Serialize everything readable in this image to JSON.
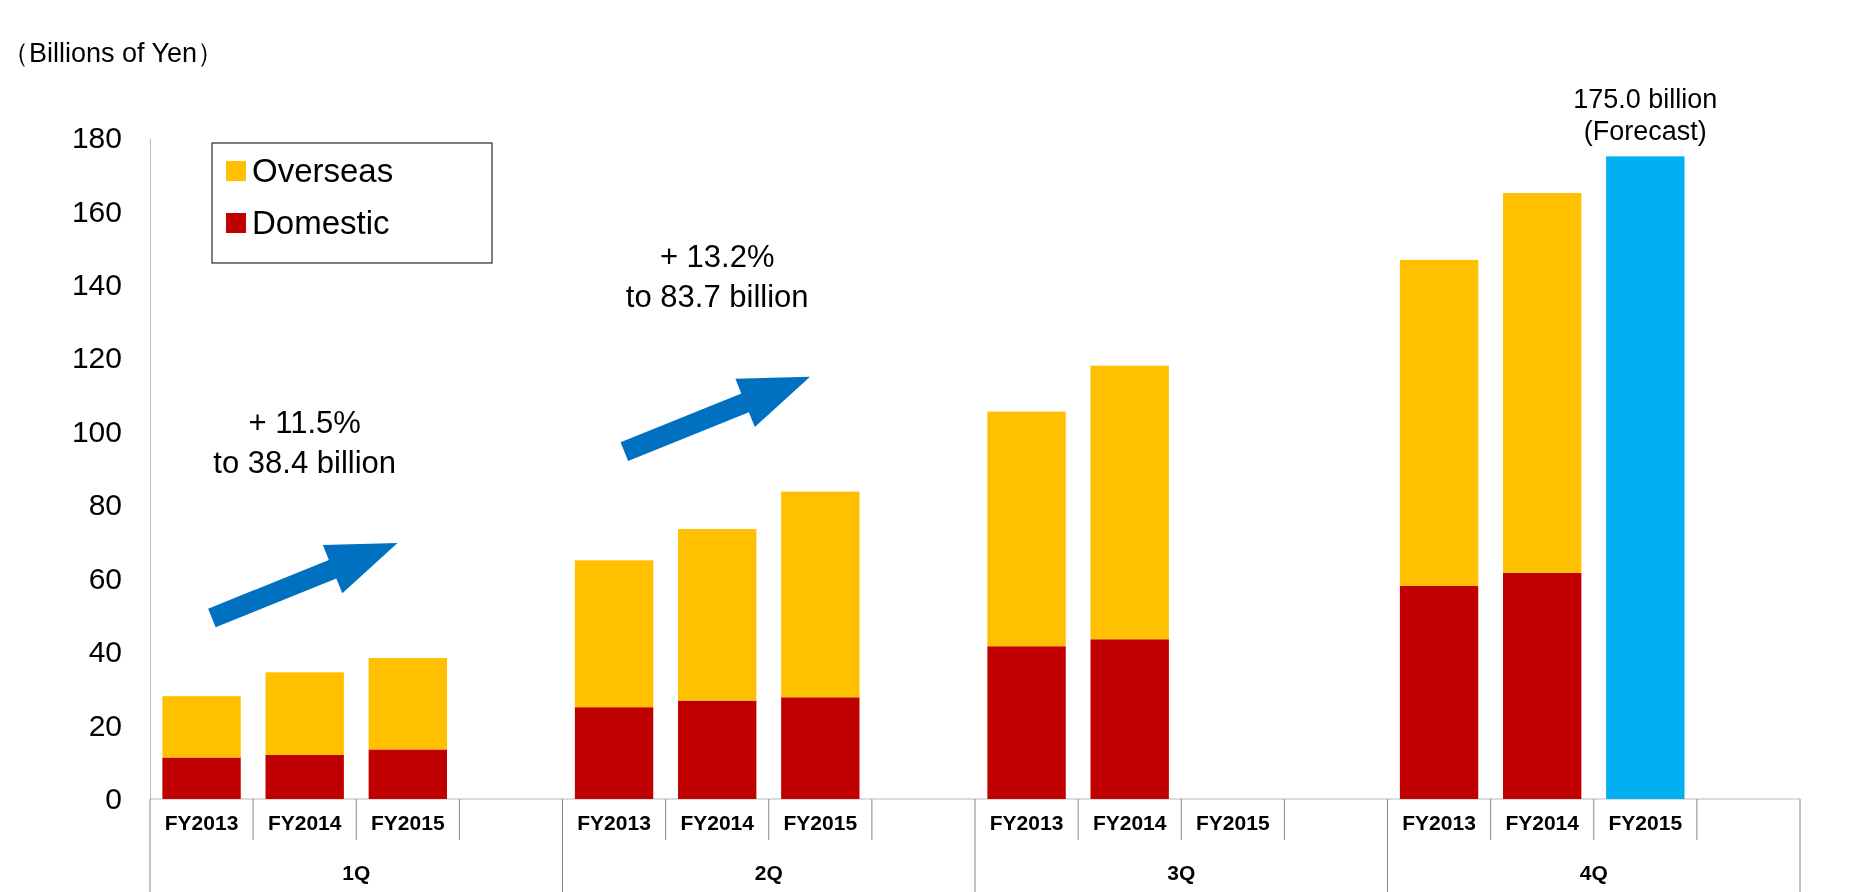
{
  "chart_data": {
    "type": "bar",
    "stacked": true,
    "ylabel": "（Billions of Yen）",
    "categories": [
      "FY2013",
      "FY2014",
      "FY2015",
      "FY2013",
      "FY2014",
      "FY2015",
      "FY2013",
      "FY2014",
      "FY2015",
      "FY2013",
      "FY2014",
      "FY2015"
    ],
    "series": [
      {
        "name": "Domestic",
        "color": "#c00000",
        "values": [
          11.3,
          12,
          13.5,
          25,
          26.8,
          27.7,
          41.6,
          43.5,
          null,
          58,
          61.6,
          null
        ]
      },
      {
        "name": "Overseas",
        "color": "#ffc000",
        "values": [
          16.7,
          22.5,
          24.9,
          40,
          46.7,
          56,
          63.9,
          74.5,
          null,
          88.8,
          103.4,
          null
        ]
      },
      {
        "color": "#00b0f0",
        "values": [
          null,
          null,
          null,
          null,
          null,
          null,
          null,
          null,
          null,
          null,
          null,
          175.0
        ],
        "value_labels": [
          null,
          null,
          null,
          null,
          null,
          null,
          null,
          null,
          null,
          null,
          null,
          "175.0 billion\n(Forecast)"
        ]
      }
    ],
    "ylim": [
      0,
      180
    ],
    "yticks": [
      0,
      20,
      40,
      60,
      80,
      100,
      120,
      140,
      160,
      180
    ],
    "grid": false,
    "legend": "top left",
    "annotations": [
      "+ 11.5%\nto 38.4 billion",
      "+ 13.2%\nto 83.7 billion",
      "1Q",
      "2Q",
      "3Q",
      "4Q"
    ]
  }
}
